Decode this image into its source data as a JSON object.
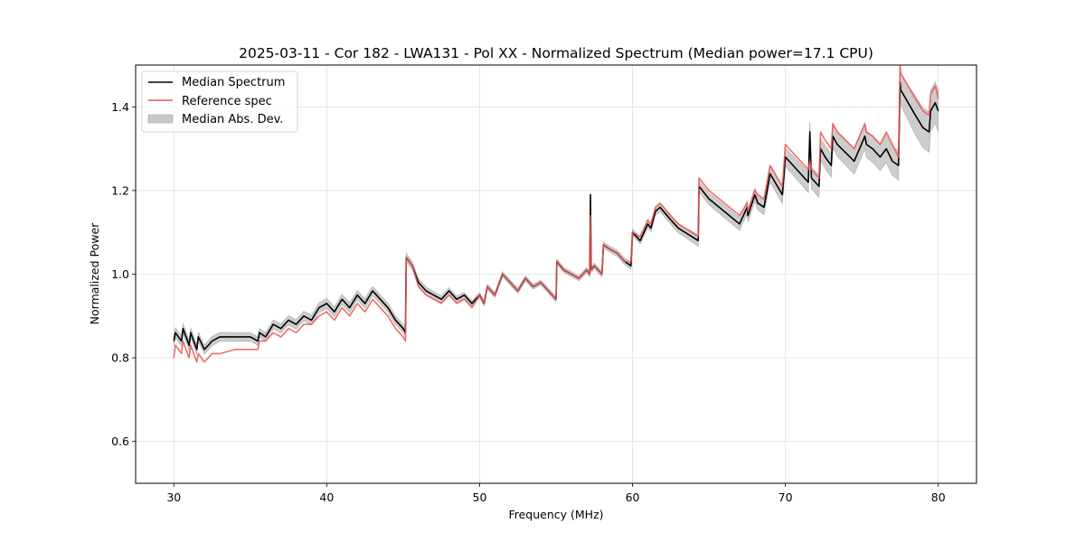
{
  "chart_data": {
    "type": "line",
    "title": "2025-03-11 - Cor 182 - LWA131 - Pol XX - Normalized Spectrum (Median power=17.1 CPU)",
    "xlabel": "Frequency (MHz)",
    "ylabel": "Normalized Power",
    "xlim": [
      27.5,
      82.5
    ],
    "ylim": [
      0.5,
      1.5
    ],
    "xticks": [
      30,
      40,
      50,
      60,
      70,
      80
    ],
    "xtick_labels": [
      "30",
      "40",
      "50",
      "60",
      "70",
      "80"
    ],
    "yticks": [
      0.6,
      0.8,
      1.0,
      1.2,
      1.4
    ],
    "ytick_labels": [
      "0.6",
      "0.8",
      "1.0",
      "1.2",
      "1.4"
    ],
    "grid": true,
    "legend_position": "top-left",
    "legend": [
      {
        "label": "Median Spectrum",
        "kind": "line",
        "color": "#000000"
      },
      {
        "label": "Reference spec",
        "kind": "line",
        "color": "#ef5350"
      },
      {
        "label": "Median Abs. Dev.",
        "kind": "band",
        "color": "#c8c8c8"
      }
    ],
    "series": [
      {
        "name": "Median Spectrum",
        "color": "#000000",
        "x": [
          30.0,
          30.1,
          30.5,
          30.6,
          31.0,
          31.1,
          31.5,
          31.6,
          32.0,
          32.5,
          33.0,
          34.0,
          35.0,
          35.5,
          35.6,
          36.0,
          36.5,
          37.0,
          37.5,
          38.0,
          38.5,
          39.0,
          39.5,
          40.0,
          40.5,
          41.0,
          41.5,
          42.0,
          42.5,
          43.0,
          43.5,
          44.0,
          44.5,
          45.0,
          45.15,
          45.2,
          45.6,
          46.0,
          46.5,
          47.0,
          47.5,
          48.0,
          48.5,
          49.0,
          49.5,
          50.0,
          50.3,
          50.5,
          51.0,
          51.5,
          52.0,
          52.5,
          53.0,
          53.5,
          54.0,
          54.5,
          55.0,
          55.05,
          55.5,
          56.0,
          56.5,
          57.0,
          57.2,
          57.25,
          57.3,
          57.5,
          58.0,
          58.1,
          58.5,
          59.0,
          59.5,
          59.9,
          60.0,
          60.5,
          61.0,
          61.2,
          61.5,
          61.8,
          62.5,
          63.0,
          64.3,
          64.35,
          65.0,
          66.0,
          67.0,
          67.5,
          67.55,
          68.0,
          68.2,
          68.6,
          69.0,
          69.8,
          70.0,
          70.5,
          71.0,
          71.5,
          71.6,
          71.7,
          72.2,
          72.3,
          72.6,
          73.0,
          73.1,
          73.4,
          74.5,
          75.2,
          75.3,
          75.7,
          76.2,
          76.6,
          77.0,
          77.4,
          77.5,
          77.55,
          78.5,
          79.0,
          79.4,
          79.5,
          79.8,
          80.0
        ],
        "y": [
          0.84,
          0.86,
          0.84,
          0.87,
          0.83,
          0.86,
          0.82,
          0.85,
          0.82,
          0.84,
          0.85,
          0.85,
          0.85,
          0.84,
          0.86,
          0.85,
          0.88,
          0.87,
          0.89,
          0.88,
          0.9,
          0.89,
          0.92,
          0.93,
          0.91,
          0.94,
          0.92,
          0.95,
          0.93,
          0.96,
          0.94,
          0.92,
          0.89,
          0.87,
          0.86,
          1.04,
          1.02,
          0.98,
          0.96,
          0.95,
          0.94,
          0.96,
          0.94,
          0.95,
          0.93,
          0.95,
          0.93,
          0.97,
          0.95,
          1.0,
          0.98,
          0.96,
          0.99,
          0.97,
          0.98,
          0.96,
          0.94,
          1.03,
          1.01,
          1.0,
          0.99,
          1.01,
          1.0,
          1.19,
          1.01,
          1.02,
          1.0,
          1.07,
          1.06,
          1.05,
          1.03,
          1.02,
          1.1,
          1.08,
          1.12,
          1.11,
          1.15,
          1.16,
          1.13,
          1.11,
          1.08,
          1.21,
          1.18,
          1.15,
          1.12,
          1.16,
          1.14,
          1.19,
          1.17,
          1.16,
          1.24,
          1.19,
          1.28,
          1.26,
          1.24,
          1.22,
          1.34,
          1.23,
          1.21,
          1.3,
          1.28,
          1.26,
          1.33,
          1.31,
          1.27,
          1.33,
          1.31,
          1.3,
          1.28,
          1.3,
          1.27,
          1.26,
          1.46,
          1.44,
          1.38,
          1.35,
          1.34,
          1.39,
          1.41,
          1.39
        ]
      },
      {
        "name": "Reference spec",
        "color": "#ef5350",
        "x": [
          30.0,
          30.1,
          30.5,
          30.6,
          31.0,
          31.1,
          31.5,
          31.6,
          32.0,
          32.5,
          33.0,
          34.0,
          35.0,
          35.5,
          35.6,
          36.0,
          36.5,
          37.0,
          37.5,
          38.0,
          38.5,
          39.0,
          39.5,
          40.0,
          40.5,
          41.0,
          41.5,
          42.0,
          42.5,
          43.0,
          43.5,
          44.0,
          44.5,
          45.0,
          45.15,
          45.2,
          45.6,
          46.0,
          46.5,
          47.0,
          47.5,
          48.0,
          48.5,
          49.0,
          49.5,
          50.0,
          50.3,
          50.5,
          51.0,
          51.5,
          52.0,
          52.5,
          53.0,
          53.5,
          54.0,
          54.5,
          55.0,
          55.05,
          55.5,
          56.0,
          56.5,
          57.0,
          57.2,
          57.25,
          57.3,
          57.5,
          58.0,
          58.1,
          58.5,
          59.0,
          59.5,
          59.9,
          60.0,
          60.5,
          61.0,
          61.2,
          61.5,
          61.8,
          62.5,
          63.0,
          64.3,
          64.35,
          65.0,
          66.0,
          67.0,
          67.5,
          67.55,
          68.0,
          68.2,
          68.6,
          69.0,
          69.8,
          70.0,
          70.5,
          71.0,
          71.5,
          71.6,
          71.7,
          72.2,
          72.3,
          72.6,
          73.0,
          73.1,
          73.4,
          74.5,
          75.2,
          75.3,
          75.7,
          76.2,
          76.6,
          77.0,
          77.4,
          77.5,
          77.55,
          78.5,
          79.0,
          79.4,
          79.5,
          79.8,
          80.0
        ],
        "y": [
          0.8,
          0.83,
          0.81,
          0.84,
          0.8,
          0.83,
          0.79,
          0.81,
          0.79,
          0.81,
          0.81,
          0.82,
          0.82,
          0.82,
          0.84,
          0.84,
          0.86,
          0.85,
          0.87,
          0.86,
          0.88,
          0.88,
          0.9,
          0.91,
          0.89,
          0.92,
          0.9,
          0.93,
          0.91,
          0.94,
          0.92,
          0.9,
          0.87,
          0.85,
          0.84,
          1.04,
          1.02,
          0.97,
          0.95,
          0.94,
          0.93,
          0.95,
          0.93,
          0.94,
          0.92,
          0.95,
          0.93,
          0.97,
          0.95,
          1.0,
          0.98,
          0.96,
          0.99,
          0.97,
          0.98,
          0.96,
          0.94,
          1.03,
          1.01,
          1.0,
          0.99,
          1.01,
          1.0,
          1.14,
          1.01,
          1.02,
          1.0,
          1.07,
          1.06,
          1.05,
          1.03,
          1.03,
          1.1,
          1.09,
          1.13,
          1.12,
          1.16,
          1.17,
          1.14,
          1.12,
          1.09,
          1.23,
          1.2,
          1.17,
          1.14,
          1.17,
          1.15,
          1.2,
          1.19,
          1.18,
          1.26,
          1.21,
          1.31,
          1.29,
          1.27,
          1.25,
          1.27,
          1.25,
          1.23,
          1.34,
          1.32,
          1.3,
          1.36,
          1.34,
          1.3,
          1.36,
          1.34,
          1.33,
          1.31,
          1.34,
          1.31,
          1.28,
          1.5,
          1.48,
          1.42,
          1.39,
          1.38,
          1.43,
          1.45,
          1.42
        ]
      }
    ],
    "band": {
      "name": "Median Abs. Dev.",
      "color": "#c8c8c8",
      "around": "Median Spectrum",
      "x": [
        30.0,
        35.0,
        40.0,
        45.0,
        45.2,
        50.0,
        55.0,
        57.0,
        60.0,
        62.0,
        65.0,
        68.0,
        70.0,
        72.0,
        74.0,
        76.0,
        77.5,
        78.0,
        80.0
      ],
      "halfwidth": [
        0.012,
        0.01,
        0.012,
        0.01,
        0.01,
        0.006,
        0.006,
        0.006,
        0.008,
        0.01,
        0.014,
        0.016,
        0.022,
        0.026,
        0.03,
        0.032,
        0.035,
        0.045,
        0.05
      ]
    }
  }
}
